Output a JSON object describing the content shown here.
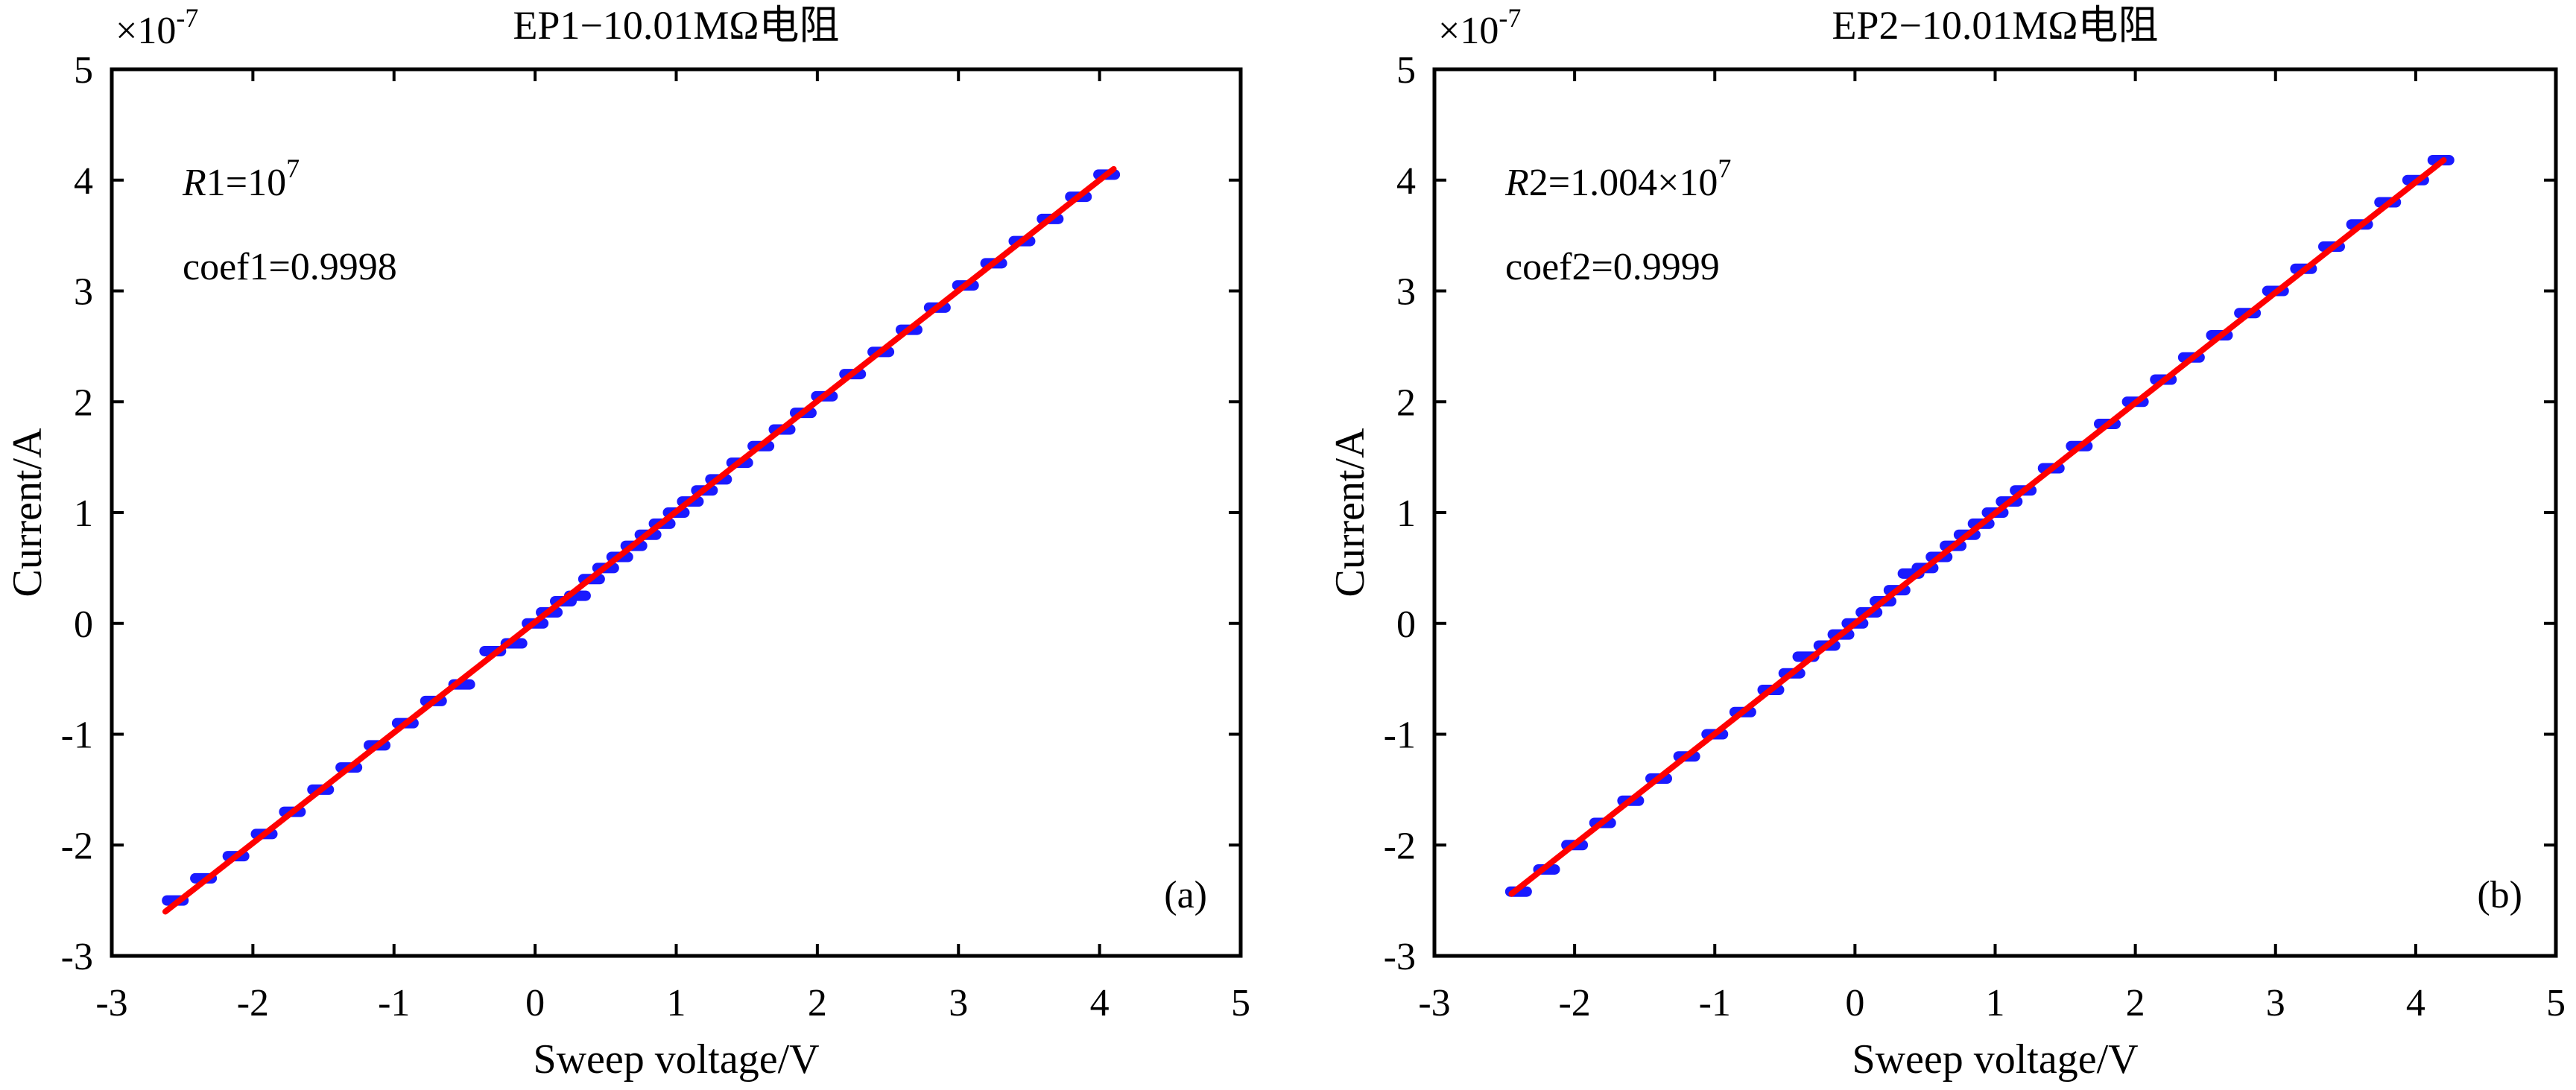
{
  "chart_data": [
    {
      "type": "scatter",
      "title": "EP1−10.01MΩ电阻",
      "xlabel": "Sweep voltage/V",
      "ylabel": "Current/A",
      "y_multiplier": "×10",
      "y_multiplier_exp": "-7",
      "xlim": [
        -3,
        5
      ],
      "ylim": [
        -3,
        5
      ],
      "xticks": [
        "-3",
        "-2",
        "-1",
        "0",
        "1",
        "2",
        "3",
        "4",
        "5"
      ],
      "yticks": [
        "-3",
        "-2",
        "-1",
        "0",
        "1",
        "2",
        "3",
        "4",
        "5"
      ],
      "grid": false,
      "annotation_r_var": "R",
      "annotation_r_rest": "1=10",
      "annotation_r_exp": "7",
      "annotation_coef": "coef1=0.9998",
      "panel_label": "(a)",
      "colors": {
        "points": "#1a1aff",
        "fit": "#ff0000"
      },
      "points": {
        "x": [
          -2.55,
          -2.35,
          -2.12,
          -1.92,
          -1.72,
          -1.52,
          -1.32,
          -1.12,
          -0.92,
          -0.72,
          -0.52,
          -0.3,
          -0.15,
          0.0,
          0.1,
          0.2,
          0.3,
          0.4,
          0.5,
          0.6,
          0.7,
          0.8,
          0.9,
          1.0,
          1.1,
          1.2,
          1.3,
          1.45,
          1.6,
          1.75,
          1.9,
          2.05,
          2.25,
          2.45,
          2.65,
          2.85,
          3.05,
          3.25,
          3.45,
          3.65,
          3.85,
          4.05
        ],
        "y": [
          -2.5,
          -2.3,
          -2.1,
          -1.9,
          -1.7,
          -1.5,
          -1.3,
          -1.1,
          -0.9,
          -0.7,
          -0.55,
          -0.25,
          -0.18,
          0.0,
          0.1,
          0.2,
          0.25,
          0.4,
          0.5,
          0.6,
          0.7,
          0.8,
          0.9,
          1.0,
          1.1,
          1.2,
          1.3,
          1.45,
          1.6,
          1.75,
          1.9,
          2.05,
          2.25,
          2.45,
          2.65,
          2.85,
          3.05,
          3.25,
          3.45,
          3.65,
          3.85,
          4.05
        ]
      },
      "fit": {
        "x": [
          -2.62,
          4.1
        ],
        "y": [
          -2.6,
          4.1
        ]
      }
    },
    {
      "type": "scatter",
      "title": "EP2−10.01MΩ电阻",
      "xlabel": "Sweep voltage/V",
      "ylabel": "Current/A",
      "y_multiplier": "×10",
      "y_multiplier_exp": "-7",
      "xlim": [
        -3,
        5
      ],
      "ylim": [
        -3,
        5
      ],
      "xticks": [
        "-3",
        "-2",
        "-1",
        "0",
        "1",
        "2",
        "3",
        "4",
        "5"
      ],
      "yticks": [
        "-3",
        "-2",
        "-1",
        "0",
        "1",
        "2",
        "3",
        "4",
        "5"
      ],
      "grid": false,
      "annotation_r_var": "R",
      "annotation_r_rest": "2=1.004×10",
      "annotation_r_exp": "7",
      "annotation_coef": "coef2=0.9999",
      "panel_label": "(b)",
      "colors": {
        "points": "#1a1aff",
        "fit": "#ff0000"
      },
      "points": {
        "x": [
          -2.4,
          -2.2,
          -2.0,
          -1.8,
          -1.6,
          -1.4,
          -1.2,
          -1.0,
          -0.8,
          -0.6,
          -0.45,
          -0.35,
          -0.2,
          -0.1,
          0.0,
          0.1,
          0.2,
          0.3,
          0.4,
          0.5,
          0.6,
          0.7,
          0.8,
          0.9,
          1.0,
          1.1,
          1.2,
          1.4,
          1.6,
          1.8,
          2.0,
          2.2,
          2.4,
          2.6,
          2.8,
          3.0,
          3.2,
          3.4,
          3.6,
          3.8,
          4.0,
          4.18
        ],
        "y": [
          -2.42,
          -2.22,
          -2.0,
          -1.8,
          -1.6,
          -1.4,
          -1.2,
          -1.0,
          -0.8,
          -0.6,
          -0.45,
          -0.3,
          -0.2,
          -0.1,
          0.0,
          0.1,
          0.2,
          0.3,
          0.45,
          0.5,
          0.6,
          0.7,
          0.8,
          0.9,
          1.0,
          1.1,
          1.2,
          1.4,
          1.6,
          1.8,
          2.0,
          2.2,
          2.4,
          2.6,
          2.8,
          3.0,
          3.2,
          3.4,
          3.6,
          3.8,
          4.0,
          4.18
        ]
      },
      "fit": {
        "x": [
          -2.45,
          4.2
        ],
        "y": [
          -2.44,
          4.18
        ]
      }
    }
  ]
}
